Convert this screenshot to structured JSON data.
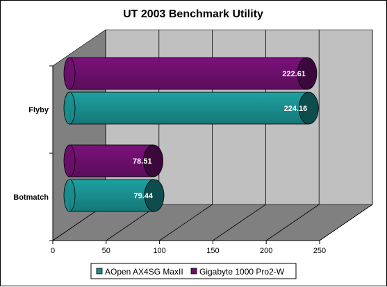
{
  "chart_data": {
    "type": "bar",
    "orientation": "horizontal",
    "title": "UT 2003 Benchmark Utility",
    "categories": [
      "Botmatch",
      "Flyby"
    ],
    "series": [
      {
        "name": "AOpen AX4SG MaxII",
        "values": [
          79.44,
          224.16
        ],
        "labels": [
          "79.44",
          "224.16"
        ],
        "color": "#1a8c8c"
      },
      {
        "name": "Gigabyte 1000 Pro2-W",
        "values": [
          78.51,
          222.61
        ],
        "labels": [
          "78.51",
          "222.61"
        ],
        "color": "#6b0f6b"
      }
    ],
    "xlim": [
      0,
      250
    ],
    "xticks": [
      "0",
      "50",
      "100",
      "150",
      "200",
      "250"
    ],
    "grid": true,
    "legend": "bottom",
    "colors": {
      "wall": "#c0c0c0",
      "floor": "#808080",
      "side": "#808080"
    }
  }
}
